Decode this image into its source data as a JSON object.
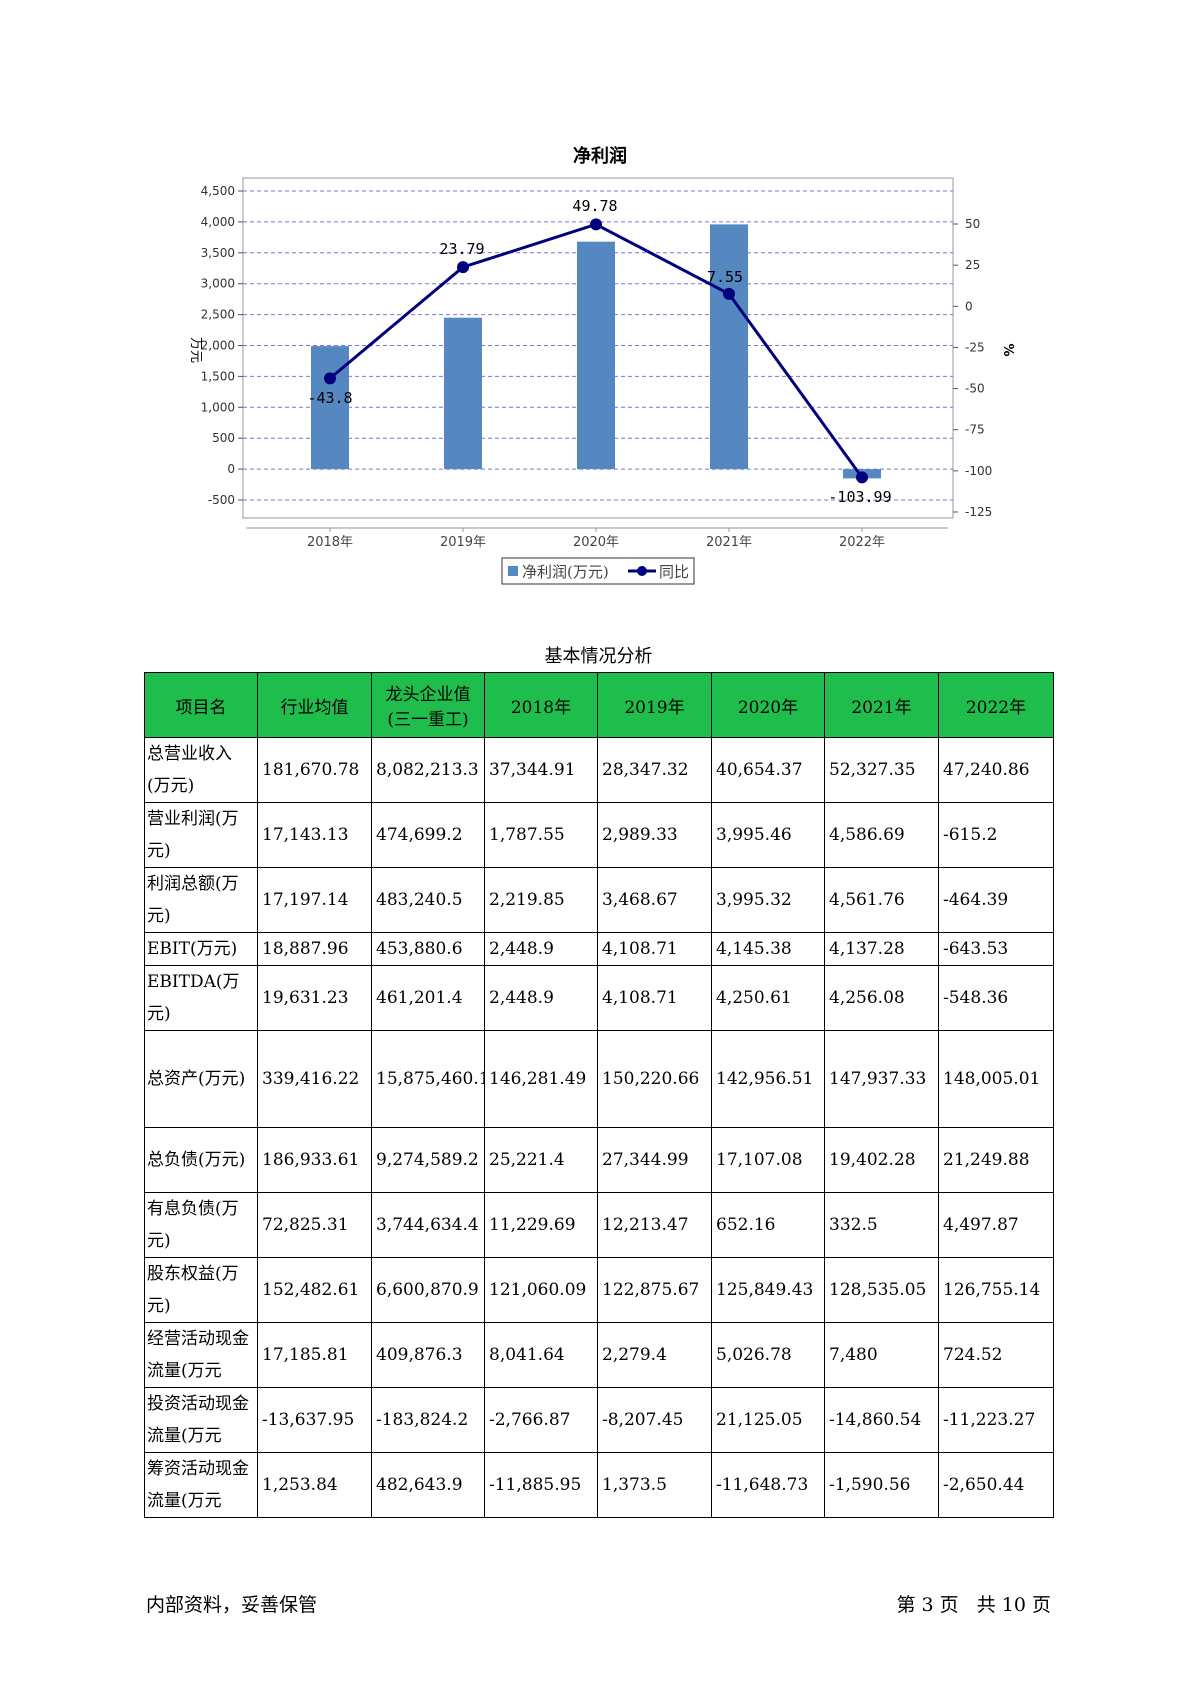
{
  "chart_data": {
    "type": "bar",
    "title": "净利润",
    "categories": [
      "2018年",
      "2019年",
      "2020年",
      "2021年",
      "2022年"
    ],
    "series": [
      {
        "name": "净利润(万元)",
        "type": "bar",
        "axis": "left",
        "values": [
          1990,
          2450,
          3680,
          3960,
          -150
        ]
      },
      {
        "name": "同比",
        "type": "line",
        "axis": "right",
        "values": [
          -43.8,
          23.79,
          49.78,
          7.55,
          -103.99
        ],
        "labels": [
          "-43.8",
          "23.79",
          "49.78",
          "7.55",
          "-103.99"
        ]
      }
    ],
    "ylabel": "万元",
    "y2label": "%",
    "ylim": [
      -500,
      4500
    ],
    "yticks": [
      "4,500",
      "4,000",
      "3,500",
      "3,000",
      "2,500",
      "2,000",
      "1,500",
      "1,000",
      "500",
      "0",
      "-500"
    ],
    "ytick_values": [
      4500,
      4000,
      3500,
      3000,
      2500,
      2000,
      1500,
      1000,
      500,
      0,
      -500
    ],
    "y2lim": [
      -125,
      50
    ],
    "y2ticks": [
      "50",
      "25",
      "0",
      "-25",
      "-50",
      "-75",
      "-100",
      "-125"
    ],
    "y2tick_values": [
      50,
      25,
      0,
      -25,
      -50,
      -75,
      -100,
      -125
    ],
    "grid": true,
    "legend": "bottom-center",
    "colors": {
      "bar": "#5588c0",
      "line": "#00007f",
      "grid": "#7777dd"
    }
  },
  "table": {
    "caption": "基本情况分析",
    "headers": [
      "项目名",
      "行业均值",
      "龙头企业值(三一重工)",
      "2018年",
      "2019年",
      "2020年",
      "2021年",
      "2022年"
    ],
    "rows": [
      [
        "总营业收入(万元)",
        "181,670.78",
        "8,082,213.3",
        "37,344.91",
        "28,347.32",
        "40,654.37",
        "52,327.35",
        "47,240.86"
      ],
      [
        "营业利润(万元)",
        "17,143.13",
        "474,699.2",
        "1,787.55",
        "2,989.33",
        "3,995.46",
        "4,586.69",
        "-615.2"
      ],
      [
        "利润总额(万元)",
        "17,197.14",
        "483,240.5",
        "2,219.85",
        "3,468.67",
        "3,995.32",
        "4,561.76",
        "-464.39"
      ],
      [
        "EBIT(万元)",
        "18,887.96",
        "453,880.6",
        "2,448.9",
        "4,108.71",
        "4,145.38",
        "4,137.28",
        "-643.53"
      ],
      [
        "EBITDA(万元)",
        "19,631.23",
        "461,201.4",
        "2,448.9",
        "4,108.71",
        "4,250.61",
        "4,256.08",
        "-548.36"
      ],
      [
        "总资产(万元)",
        "339,416.22",
        "15,875,460.1",
        "146,281.49",
        "150,220.66",
        "142,956.51",
        "147,937.33",
        "148,005.01"
      ],
      [
        "总负债(万元)",
        "186,933.61",
        "9,274,589.2",
        "25,221.4",
        "27,344.99",
        "17,107.08",
        "19,402.28",
        "21,249.88"
      ],
      [
        "有息负债(万元)",
        "72,825.31",
        "3,744,634.4",
        "11,229.69",
        "12,213.47",
        "652.16",
        "332.5",
        "4,497.87"
      ],
      [
        "股东权益(万元)",
        "152,482.61",
        "6,600,870.9",
        "121,060.09",
        "122,875.67",
        "125,849.43",
        "128,535.05",
        "126,755.14"
      ],
      [
        "经营活动现金流量(万元",
        "17,185.81",
        "409,876.3",
        "8,041.64",
        "2,279.4",
        "5,026.78",
        "7,480",
        "724.52"
      ],
      [
        "投资活动现金流量(万元",
        "-13,637.95",
        "-183,824.2",
        "-2,766.87",
        "-8,207.45",
        "21,125.05",
        "-14,860.54",
        "-11,223.27"
      ],
      [
        "筹资活动现金流量(万元",
        "1,253.84",
        "482,643.9",
        "-11,885.95",
        "1,373.5",
        "-11,648.73",
        "-1,590.56",
        "-2,650.44"
      ]
    ]
  },
  "footer": {
    "left": "内部资料，妥善保管",
    "right": "第 3 页   共 10 页"
  }
}
